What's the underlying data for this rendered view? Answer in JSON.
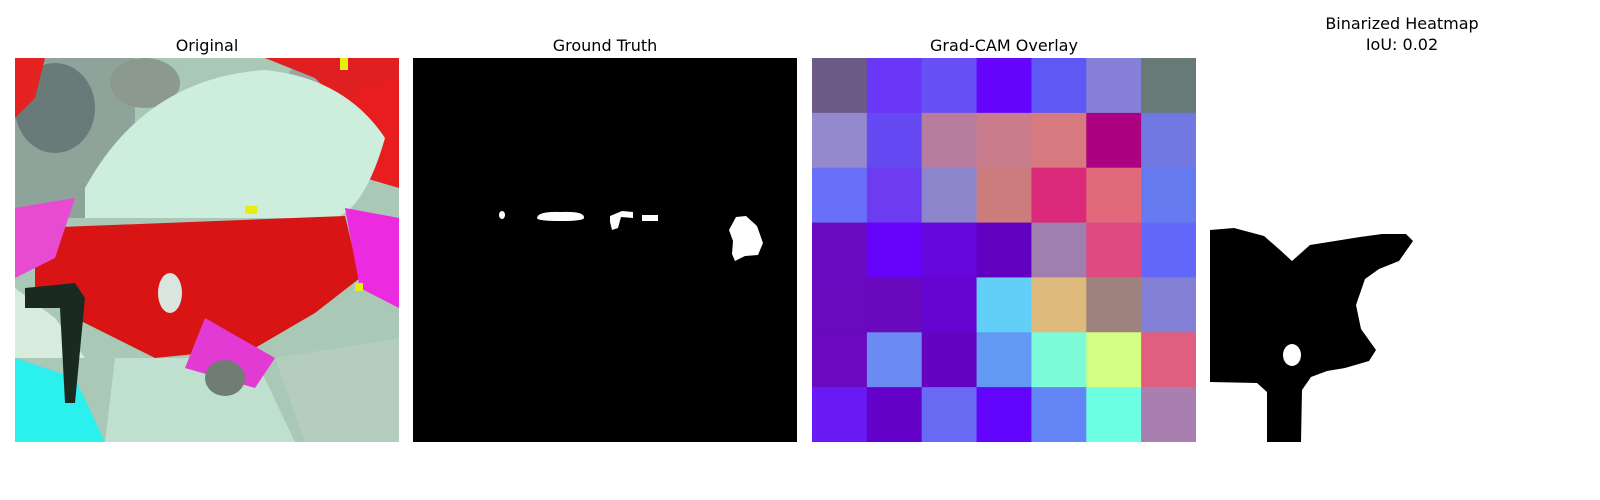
{
  "panels": [
    {
      "title": "Original"
    },
    {
      "title": "Ground Truth"
    },
    {
      "title": "Grad-CAM Overlay"
    },
    {
      "title": "Binarized Heatmap",
      "subtitle": "IoU: 0.02"
    }
  ],
  "iou": 0.02,
  "gradcam_grid": [
    [
      "#6e5a86",
      "#6a37f8",
      "#6750f4",
      "#6505fc",
      "#5f58f5",
      "#8780d8",
      "#677a78"
    ],
    [
      "#9489cc",
      "#6549f3",
      "#b87d9e",
      "#c97c8c",
      "#d77a80",
      "#ac0281",
      "#7278e2"
    ],
    [
      "#6a6ffa",
      "#6d3cf1",
      "#8d86cd",
      "#cd7c7e",
      "#db2a79",
      "#e06a7a",
      "#667af0"
    ],
    [
      "#6b0ac2",
      "#6503fb",
      "#6506dc",
      "#6300bf",
      "#a07fb0",
      "#df4b7f",
      "#6368fa"
    ],
    [
      "#6a0abf",
      "#6908bd",
      "#6404cf",
      "#62cff8",
      "#debb7c",
      "#9e827e",
      "#8480d6"
    ],
    [
      "#6c08bf",
      "#6b8bf3",
      "#6503c1",
      "#6199f5",
      "#7cfbd9",
      "#d3ff83",
      "#e05e80"
    ],
    [
      "#6a1af4",
      "#6502c9",
      "#686af3",
      "#6304fc",
      "#6485f5",
      "#6dffe2",
      "#a97fb1"
    ]
  ]
}
